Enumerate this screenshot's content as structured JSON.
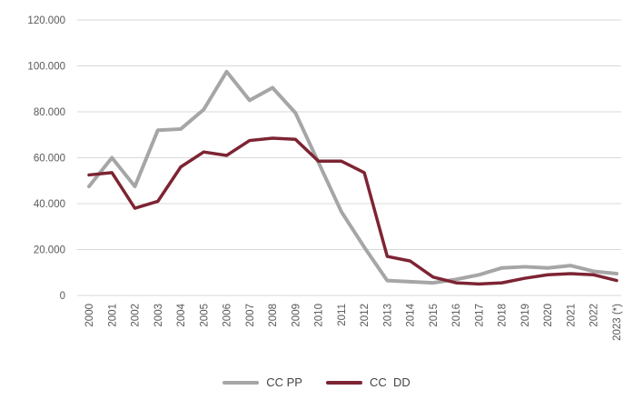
{
  "chart_data": {
    "type": "line",
    "title": "",
    "xlabel": "",
    "ylabel": "",
    "categories": [
      "2000",
      "2001",
      "2002",
      "2003",
      "2004",
      "2005",
      "2006",
      "2007",
      "2008",
      "2009",
      "2010",
      "2011",
      "2012",
      "2013",
      "2014",
      "2015",
      "2016",
      "2017",
      "2018",
      "2019",
      "2020",
      "2021",
      "2022",
      "2023 (*)"
    ],
    "series": [
      {
        "id": "cc-pp",
        "name": "CC PP",
        "color": "#a6a6a6",
        "stroke_width": 4,
        "values": [
          47500,
          60000,
          47500,
          72000,
          72500,
          81000,
          97500,
          85000,
          90500,
          79500,
          58000,
          36500,
          21000,
          6500,
          6000,
          5500,
          7000,
          9000,
          12000,
          12500,
          12000,
          13000,
          10500,
          9500
        ]
      },
      {
        "id": "cc-dd",
        "name": "CC  DD",
        "color": "#7d2433",
        "stroke_width": 3.5,
        "values": [
          52500,
          53500,
          38000,
          41000,
          56000,
          62500,
          61000,
          67500,
          68500,
          68000,
          58500,
          58500,
          53500,
          17000,
          15000,
          8000,
          5500,
          5000,
          5500,
          7500,
          9000,
          9500,
          9000,
          6500
        ]
      }
    ],
    "ylim": [
      0,
      120000
    ],
    "ytick_step": 20000,
    "ytick_labels": [
      "0",
      "20.000",
      "40.000",
      "60.000",
      "80.000",
      "100.000",
      "120.000"
    ],
    "grid": true,
    "gridline_color": "#d9d9d9",
    "legend_position": "bottom"
  },
  "colors": {
    "background": "#ffffff",
    "axis_text": "#595959",
    "legend_text": "#444444"
  }
}
